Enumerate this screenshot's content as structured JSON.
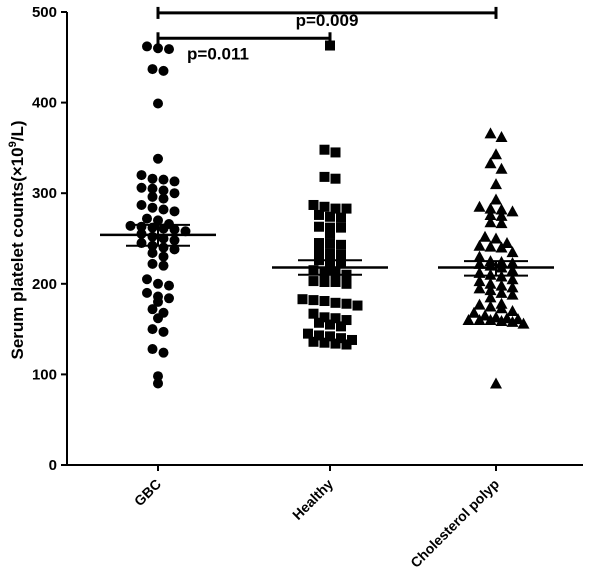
{
  "chart_data": {
    "type": "scatter",
    "ylabel_main": "Serum platelet counts(×10",
    "ylabel_sup": "9",
    "ylabel_end": "/L)",
    "ylim": [
      0,
      500
    ],
    "yticks": [
      "0",
      "100",
      "200",
      "300",
      "400",
      "500"
    ],
    "categories": [
      "GBC",
      "Healthy",
      "Cholesterol polyp"
    ],
    "grid": false,
    "series": [
      {
        "category": "GBC",
        "marker": "circle",
        "mean": 254,
        "sem_low": 242,
        "sem_high": 265,
        "values": [
          462,
          459,
          460,
          437,
          435,
          399,
          338,
          320,
          316,
          315,
          313,
          306,
          305,
          303,
          300,
          296,
          294,
          287,
          284,
          282,
          280,
          272,
          270,
          266,
          264,
          263,
          262,
          261,
          260,
          258,
          255,
          252,
          250,
          248,
          245,
          242,
          240,
          238,
          234,
          230,
          222,
          220,
          205,
          200,
          198,
          190,
          186,
          184,
          180,
          172,
          168,
          162,
          150,
          147,
          128,
          124,
          98,
          90
        ]
      },
      {
        "category": "Healthy",
        "marker": "square",
        "mean": 218,
        "sem_low": 210,
        "sem_high": 226,
        "values": [
          463,
          348,
          345,
          318,
          316,
          287,
          285,
          283,
          283,
          276,
          274,
          273,
          263,
          262,
          262,
          255,
          245,
          244,
          243,
          236,
          233,
          232,
          226,
          224,
          223,
          215,
          213,
          212,
          210,
          203,
          202,
          202,
          200,
          183,
          182,
          181,
          179,
          178,
          176,
          167,
          163,
          162,
          160,
          157,
          155,
          153,
          145,
          143,
          142,
          140,
          138,
          136,
          135,
          134,
          133
        ]
      },
      {
        "category": "Cholesterol polyp",
        "marker": "triangle",
        "mean": 218,
        "sem_low": 209,
        "sem_high": 225,
        "values": [
          366,
          362,
          343,
          333,
          327,
          310,
          293,
          285,
          283,
          282,
          280,
          276,
          275,
          268,
          267,
          252,
          250,
          245,
          242,
          241,
          240,
          235,
          230,
          225,
          224,
          223,
          222,
          220,
          218,
          215,
          212,
          210,
          208,
          205,
          203,
          200,
          198,
          196,
          195,
          193,
          190,
          188,
          185,
          178,
          177,
          175,
          173,
          170,
          168,
          165,
          163,
          162,
          161,
          160,
          160,
          160,
          159,
          158,
          156,
          90
        ]
      }
    ],
    "comparisons": [
      {
        "from": 0,
        "to": 2,
        "label": "p=0.009",
        "y": 499
      },
      {
        "from": 0,
        "to": 1,
        "label": "p=0.011",
        "y": 471
      }
    ]
  }
}
